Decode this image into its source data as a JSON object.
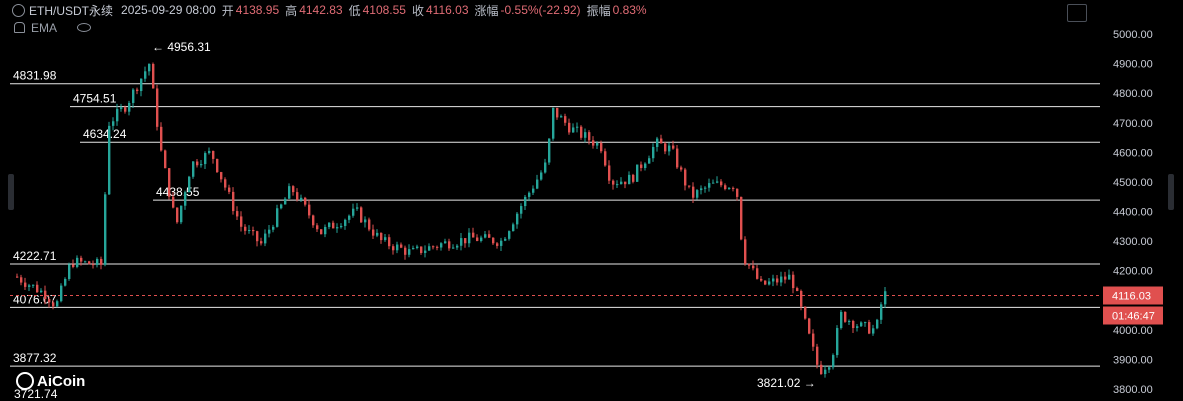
{
  "header": {
    "symbol": "ETH/USDT永续",
    "datetime": "2025-09-29 08:00",
    "open_label": "开",
    "open": "4138.95",
    "high_label": "高",
    "high": "4142.83",
    "low_label": "低",
    "low": "4108.55",
    "close_label": "收",
    "close": "4116.03",
    "change_label": "涨幅",
    "change": "-0.55%(-22.92)",
    "amplitude_label": "振幅",
    "amplitude": "0.83%",
    "indicator": "EMA"
  },
  "logo": {
    "text": "AiCoin"
  },
  "colors": {
    "up": "#26a69a",
    "down": "#e0504f",
    "grid": "#ffffff",
    "axis_text": "#c8ccd6",
    "price_tag": "#e0504f"
  },
  "chart_data": {
    "type": "candlestick",
    "ylim": [
      3780,
      5040
    ],
    "yticks": [
      "5000.00",
      "4900.00",
      "4800.00",
      "4700.00",
      "4600.00",
      "4500.00",
      "4400.00",
      "4300.00",
      "4200.00",
      "4100.00",
      "4000.00",
      "3900.00",
      "3800.00"
    ],
    "current_price": "4116.03",
    "countdown": "01:46:47",
    "levels": [
      {
        "label": "4831.98",
        "value": 4831.98
      },
      {
        "label": "4754.51",
        "value": 4754.51
      },
      {
        "label": "4634.24",
        "value": 4634.24
      },
      {
        "label": "4438.55",
        "value": 4438.55
      },
      {
        "label": "4222.71",
        "value": 4222.71
      },
      {
        "label": "4076.07",
        "value": 4076.07
      },
      {
        "label": "3877.32",
        "value": 3877.32
      }
    ],
    "bottom_label": "3721.74",
    "annotations": [
      {
        "text": "← 4956.31",
        "value": 4956.31
      },
      {
        "text": "3821.02 →",
        "value": 3821.02
      }
    ],
    "candles": []
  }
}
